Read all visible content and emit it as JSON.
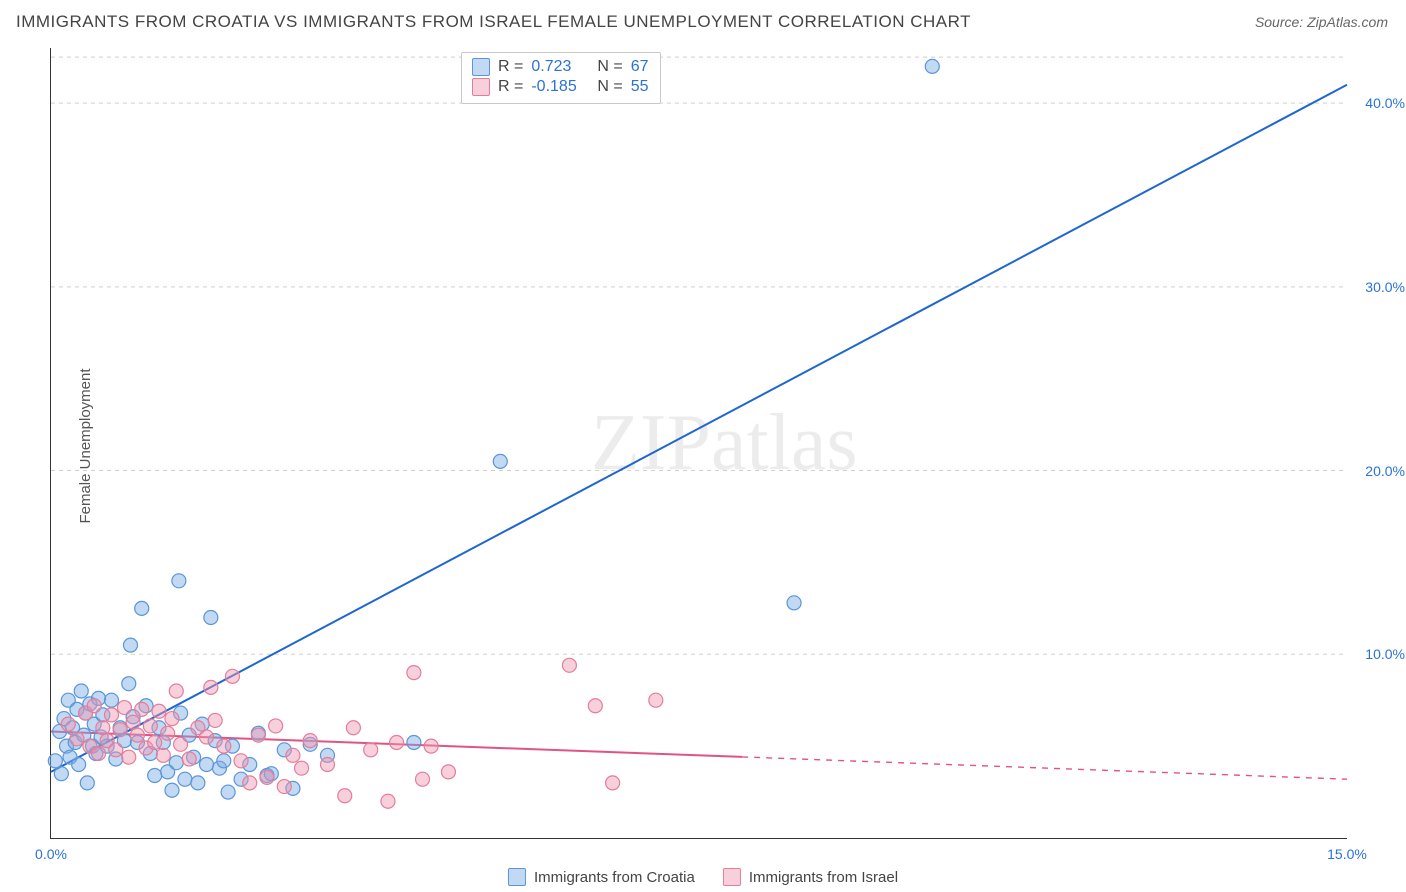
{
  "title": "IMMIGRANTS FROM CROATIA VS IMMIGRANTS FROM ISRAEL FEMALE UNEMPLOYMENT CORRELATION CHART",
  "source": "Source: ZipAtlas.com",
  "ylabel": "Female Unemployment",
  "watermark": "ZIPatlas",
  "chart": {
    "type": "scatter",
    "xlim": [
      0,
      15
    ],
    "ylim": [
      0,
      43
    ],
    "xticks": [
      {
        "v": 0,
        "label": "0.0%"
      },
      {
        "v": 15,
        "label": "15.0%"
      }
    ],
    "yticks": [
      {
        "v": 10,
        "label": "10.0%"
      },
      {
        "v": 20,
        "label": "20.0%"
      },
      {
        "v": 30,
        "label": "30.0%"
      },
      {
        "v": 40,
        "label": "40.0%"
      }
    ],
    "background_color": "#ffffff",
    "grid_color": "#d0d0d0",
    "marker_radius": 7,
    "marker_stroke_width": 1.2,
    "line_width": 2,
    "series": [
      {
        "key": "croatia",
        "label": "Immigrants from Croatia",
        "fill": "rgba(120,170,230,0.45)",
        "stroke": "#5a96d8",
        "line_color": "#1f66d0",
        "r": "0.723",
        "n": "67",
        "regression": {
          "x1": 0.0,
          "y1": 3.6,
          "x2": 15.0,
          "y2": 41.0,
          "solid_to_x": 15.0
        },
        "points": [
          [
            0.05,
            4.2
          ],
          [
            0.1,
            5.8
          ],
          [
            0.12,
            3.5
          ],
          [
            0.15,
            6.5
          ],
          [
            0.18,
            5.0
          ],
          [
            0.2,
            7.5
          ],
          [
            0.22,
            4.4
          ],
          [
            0.25,
            6.0
          ],
          [
            0.28,
            5.2
          ],
          [
            0.3,
            7.0
          ],
          [
            0.32,
            4.0
          ],
          [
            0.35,
            8.0
          ],
          [
            0.38,
            5.6
          ],
          [
            0.4,
            6.8
          ],
          [
            0.42,
            3.0
          ],
          [
            0.45,
            7.3
          ],
          [
            0.48,
            5.0
          ],
          [
            0.5,
            6.2
          ],
          [
            0.52,
            4.6
          ],
          [
            0.55,
            7.6
          ],
          [
            0.58,
            5.5
          ],
          [
            0.6,
            6.7
          ],
          [
            0.65,
            5.0
          ],
          [
            0.7,
            7.5
          ],
          [
            0.75,
            4.3
          ],
          [
            0.8,
            6.0
          ],
          [
            0.85,
            5.3
          ],
          [
            0.9,
            8.4
          ],
          [
            0.92,
            10.5
          ],
          [
            0.95,
            6.6
          ],
          [
            1.0,
            5.2
          ],
          [
            1.05,
            12.5
          ],
          [
            1.1,
            7.2
          ],
          [
            1.15,
            4.6
          ],
          [
            1.2,
            3.4
          ],
          [
            1.25,
            6.0
          ],
          [
            1.3,
            5.2
          ],
          [
            1.35,
            3.6
          ],
          [
            1.4,
            2.6
          ],
          [
            1.45,
            4.1
          ],
          [
            1.48,
            14.0
          ],
          [
            1.5,
            6.8
          ],
          [
            1.55,
            3.2
          ],
          [
            1.6,
            5.6
          ],
          [
            1.65,
            4.4
          ],
          [
            1.7,
            3.0
          ],
          [
            1.75,
            6.2
          ],
          [
            1.8,
            4.0
          ],
          [
            1.85,
            12.0
          ],
          [
            1.9,
            5.3
          ],
          [
            1.95,
            3.8
          ],
          [
            2.0,
            4.2
          ],
          [
            2.05,
            2.5
          ],
          [
            2.1,
            5.0
          ],
          [
            2.2,
            3.2
          ],
          [
            2.3,
            4.0
          ],
          [
            2.4,
            5.7
          ],
          [
            2.5,
            3.4
          ],
          [
            2.55,
            3.5
          ],
          [
            2.7,
            4.8
          ],
          [
            2.8,
            2.7
          ],
          [
            3.0,
            5.1
          ],
          [
            3.2,
            4.5
          ],
          [
            4.2,
            5.2
          ],
          [
            5.2,
            20.5
          ],
          [
            8.6,
            12.8
          ],
          [
            10.2,
            42.0
          ]
        ]
      },
      {
        "key": "israel",
        "label": "Immigrants from Israel",
        "fill": "rgba(240,150,175,0.45)",
        "stroke": "#e47d9b",
        "line_color": "#e25383",
        "r": "-0.185",
        "n": "55",
        "regression": {
          "x1": 0.0,
          "y1": 5.8,
          "x2": 15.0,
          "y2": 3.2,
          "solid_to_x": 8.0
        },
        "points": [
          [
            0.2,
            6.2
          ],
          [
            0.3,
            5.4
          ],
          [
            0.4,
            6.8
          ],
          [
            0.45,
            5.0
          ],
          [
            0.5,
            7.2
          ],
          [
            0.55,
            4.6
          ],
          [
            0.6,
            6.0
          ],
          [
            0.65,
            5.3
          ],
          [
            0.7,
            6.7
          ],
          [
            0.75,
            4.8
          ],
          [
            0.8,
            5.9
          ],
          [
            0.85,
            7.1
          ],
          [
            0.9,
            4.4
          ],
          [
            0.95,
            6.3
          ],
          [
            1.0,
            5.6
          ],
          [
            1.05,
            7.0
          ],
          [
            1.1,
            4.9
          ],
          [
            1.15,
            6.1
          ],
          [
            1.2,
            5.2
          ],
          [
            1.25,
            6.9
          ],
          [
            1.3,
            4.5
          ],
          [
            1.35,
            5.7
          ],
          [
            1.4,
            6.5
          ],
          [
            1.45,
            8.0
          ],
          [
            1.5,
            5.1
          ],
          [
            1.6,
            4.3
          ],
          [
            1.7,
            6.0
          ],
          [
            1.8,
            5.5
          ],
          [
            1.85,
            8.2
          ],
          [
            1.9,
            6.4
          ],
          [
            2.0,
            5.0
          ],
          [
            2.1,
            8.8
          ],
          [
            2.2,
            4.2
          ],
          [
            2.3,
            3.0
          ],
          [
            2.4,
            5.6
          ],
          [
            2.5,
            3.3
          ],
          [
            2.6,
            6.1
          ],
          [
            2.7,
            2.8
          ],
          [
            2.8,
            4.5
          ],
          [
            2.9,
            3.8
          ],
          [
            3.0,
            5.3
          ],
          [
            3.2,
            4.0
          ],
          [
            3.4,
            2.3
          ],
          [
            3.5,
            6.0
          ],
          [
            3.7,
            4.8
          ],
          [
            3.9,
            2.0
          ],
          [
            4.0,
            5.2
          ],
          [
            4.2,
            9.0
          ],
          [
            4.3,
            3.2
          ],
          [
            4.4,
            5.0
          ],
          [
            4.6,
            3.6
          ],
          [
            6.0,
            9.4
          ],
          [
            6.3,
            7.2
          ],
          [
            6.5,
            3.0
          ],
          [
            7.0,
            7.5
          ]
        ]
      }
    ]
  },
  "top_legend": {
    "rows": [
      {
        "swatch_fill": "rgba(120,170,230,0.45)",
        "swatch_stroke": "#5a96d8",
        "r_label": "R =",
        "r_val": "0.723",
        "n_label": "N =",
        "n_val": "67"
      },
      {
        "swatch_fill": "rgba(240,150,175,0.45)",
        "swatch_stroke": "#e47d9b",
        "r_label": "R =",
        "r_val": "-0.185",
        "n_label": "N =",
        "n_val": "55"
      }
    ]
  }
}
